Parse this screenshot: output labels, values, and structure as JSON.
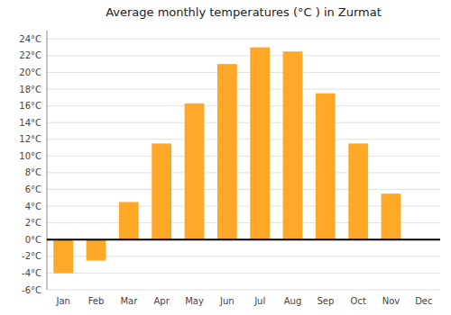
{
  "chart_data": {
    "type": "bar",
    "title": "Average monthly temperatures (°C ) in Zurmat",
    "categories": [
      "Jan",
      "Feb",
      "Mar",
      "Apr",
      "May",
      "Jun",
      "Jul",
      "Aug",
      "Sep",
      "Oct",
      "Nov",
      "Dec"
    ],
    "values": [
      -4.0,
      -2.5,
      4.5,
      11.5,
      16.3,
      21.0,
      23.0,
      22.5,
      17.5,
      11.5,
      5.5,
      0.0
    ],
    "color": "#FFA726",
    "ylim": [
      -6,
      25
    ],
    "yticks": [
      {
        "value": -6,
        "label": "-6°C"
      },
      {
        "value": -4,
        "label": "-4°C"
      },
      {
        "value": -2,
        "label": "-2°C"
      },
      {
        "value": 0,
        "label": "0°C"
      },
      {
        "value": 2,
        "label": "2°C"
      },
      {
        "value": 4,
        "label": "4°C"
      },
      {
        "value": 6,
        "label": "6°C"
      },
      {
        "value": 8,
        "label": "8°C"
      },
      {
        "value": 10,
        "label": "10°C"
      },
      {
        "value": 12,
        "label": "12°C"
      },
      {
        "value": 14,
        "label": "14°C"
      },
      {
        "value": 16,
        "label": "16°C"
      },
      {
        "value": 18,
        "label": "18°C"
      },
      {
        "value": 20,
        "label": "20°C"
      },
      {
        "value": 22,
        "label": "22°C"
      },
      {
        "value": 24,
        "label": "24°C"
      }
    ],
    "grid": true
  }
}
